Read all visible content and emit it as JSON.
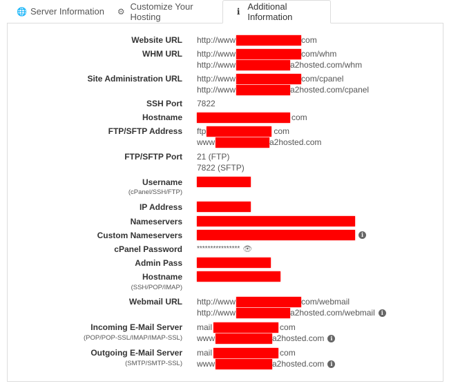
{
  "tabs": [
    {
      "label": "Server Information",
      "icon": "globe-icon"
    },
    {
      "label": "Customize Your Hosting",
      "icon": "gears-icon"
    },
    {
      "label": "Additional Information",
      "icon": "info-icon"
    }
  ],
  "fields": {
    "website_url": {
      "label": "Website URL",
      "prefix": "http://www",
      "suffix": "com"
    },
    "whm_url": {
      "label": "WHM URL",
      "line1_prefix": "http://www",
      "line1_suffix": "com/whm",
      "line2_prefix": "http://www",
      "line2_suffix": "a2hosted.com/whm"
    },
    "site_admin_url": {
      "label": "Site Administration URL",
      "line1_prefix": "http://www",
      "line1_suffix": "com/cpanel",
      "line2_prefix": "http://www",
      "line2_suffix": "a2hosted.com/cpanel"
    },
    "ssh_port": {
      "label": "SSH Port",
      "value": "7822"
    },
    "hostname": {
      "label": "Hostname",
      "suffix": "com"
    },
    "ftp_address": {
      "label": "FTP/SFTP Address",
      "line1_prefix": "ftp",
      "line1_suffix": "com",
      "line2_prefix": "www",
      "line2_suffix": "a2hosted.com"
    },
    "ftp_port": {
      "label": "FTP/SFTP Port",
      "line1": "21 (FTP)",
      "line2": "7822 (SFTP)"
    },
    "username": {
      "label": "Username",
      "sub": "(cPanel/SSH/FTP)"
    },
    "ip_address": {
      "label": "IP Address"
    },
    "nameservers": {
      "label": "Nameservers"
    },
    "custom_nameservers": {
      "label": "Custom Nameservers"
    },
    "cpanel_password": {
      "label": "cPanel Password",
      "value": "****************"
    },
    "admin_pass": {
      "label": "Admin Pass"
    },
    "hostname2": {
      "label": "Hostname",
      "sub": "(SSH/POP/IMAP)"
    },
    "webmail_url": {
      "label": "Webmail URL",
      "line1_prefix": "http://www",
      "line1_suffix": "com/webmail",
      "line2_prefix": "http://www",
      "line2_suffix": "a2hosted.com/webmail"
    },
    "incoming_mail": {
      "label": "Incoming E-Mail Server",
      "sub": "(POP/POP-SSL/IMAP/IMAP-SSL)",
      "line1_prefix": "mail",
      "line1_suffix": "com",
      "line2_prefix": "www",
      "line2_suffix": "a2hosted.com"
    },
    "outgoing_mail": {
      "label": "Outgoing E-Mail Server",
      "sub": "(SMTP/SMTP-SSL)",
      "line1_prefix": "mail",
      "line1_suffix": "com",
      "line2_prefix": "www",
      "line2_suffix": "a2hosted.com"
    }
  },
  "info_glyph": "i",
  "colors": {
    "redaction": "#ff0000",
    "border": "#dcdcdc"
  }
}
